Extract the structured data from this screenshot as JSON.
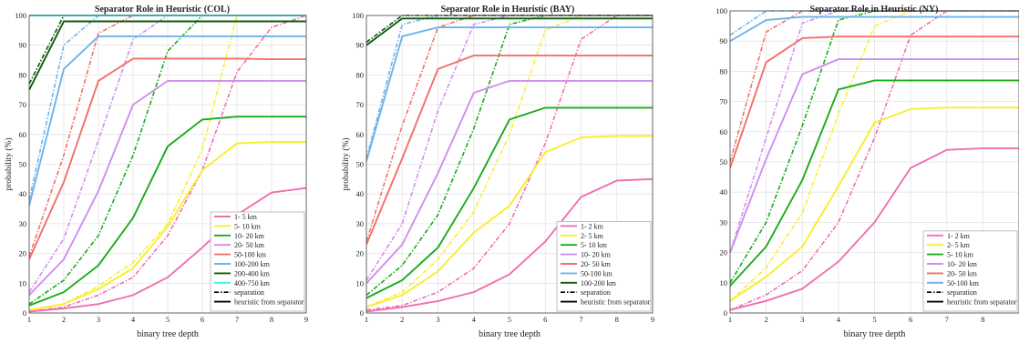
{
  "figure": {
    "ylabel": "probability (%)",
    "xlabel": "binary tree depth"
  },
  "legend_style": {
    "separation": "separation",
    "heuristic": "heuristic from separator"
  },
  "chart_data": [
    {
      "type": "line",
      "title": "Separator Role in Heuristic (COL)",
      "xlabel": "binary tree depth",
      "ylabel": "probability (%)",
      "xlim": [
        1,
        9
      ],
      "ylim": [
        0,
        100
      ],
      "xticks": [
        1,
        2,
        3,
        4,
        5,
        6,
        7,
        8,
        9
      ],
      "yticks": [
        0,
        10,
        20,
        30,
        40,
        50,
        60,
        70,
        80,
        90,
        100
      ],
      "grid": true,
      "legend_position": "bottom-right",
      "x": [
        1,
        2,
        3,
        4,
        5,
        6,
        7,
        8,
        9
      ],
      "series": [
        {
          "name": "1- 5 km",
          "color": "#f06fb0",
          "separation": [
            0.5,
            2,
            6,
            12,
            26,
            48,
            81,
            96,
            100
          ],
          "heuristic": [
            0.5,
            1.5,
            3,
            6,
            12,
            22,
            33,
            40.5,
            42
          ]
        },
        {
          "name": "5- 10 km",
          "color": "#f8ee2c",
          "separation": [
            1,
            3,
            9,
            17,
            30,
            55,
            100,
            100,
            100
          ],
          "heuristic": [
            1,
            3,
            8,
            15,
            29,
            48,
            57,
            57.5,
            57.5
          ]
        },
        {
          "name": "10- 20 km",
          "color": "#1aab1a",
          "separation": [
            3,
            11,
            26,
            53,
            88,
            100,
            100,
            100,
            100
          ],
          "heuristic": [
            2.5,
            7,
            16,
            32,
            56,
            65,
            66,
            66,
            66
          ]
        },
        {
          "name": "20- 50 km",
          "color": "#cf8ef0",
          "separation": [
            7,
            25,
            58,
            92,
            100,
            100,
            100,
            100,
            100
          ],
          "heuristic": [
            6,
            18,
            41,
            70,
            78,
            78,
            78,
            78,
            78
          ]
        },
        {
          "name": "50-100 km",
          "color": "#f2706a",
          "separation": [
            19,
            53,
            94,
            100,
            100,
            100,
            100,
            100,
            100
          ],
          "heuristic": [
            18,
            44,
            78,
            85.5,
            85.5,
            85.5,
            85.5,
            85.3,
            85.3
          ]
        },
        {
          "name": "100-200 km",
          "color": "#6fb3ea",
          "separation": [
            38,
            90,
            100,
            100,
            100,
            100,
            100,
            100,
            100
          ],
          "heuristic": [
            36,
            82,
            93,
            93,
            93,
            93,
            93,
            93,
            93
          ]
        },
        {
          "name": "200-400 km",
          "color": "#0e5b0e",
          "separation": [
            77,
            100,
            100,
            100,
            100,
            100,
            100,
            100,
            100
          ],
          "heuristic": [
            75,
            98,
            98,
            98,
            98,
            98,
            98,
            98,
            98
          ]
        },
        {
          "name": "400-750 km",
          "color": "#3ff0f2",
          "separation": [
            100,
            100,
            100,
            100,
            100,
            100,
            100,
            100,
            100
          ],
          "heuristic": [
            100,
            100,
            100,
            100,
            100,
            100,
            100,
            100,
            100
          ]
        }
      ]
    },
    {
      "type": "line",
      "title": "Separator Role in Heuristic (BAY)",
      "xlabel": "binary tree depth",
      "ylabel": "probability (%)",
      "xlim": [
        1,
        9
      ],
      "ylim": [
        0,
        100
      ],
      "xticks": [
        1,
        2,
        3,
        4,
        5,
        6,
        7,
        8,
        9
      ],
      "yticks": [
        0,
        10,
        20,
        30,
        40,
        50,
        60,
        70,
        80,
        90,
        100
      ],
      "grid": true,
      "legend_position": "bottom-right",
      "x": [
        1,
        2,
        3,
        4,
        5,
        6,
        7,
        8,
        9
      ],
      "series": [
        {
          "name": "1- 2 km",
          "color": "#f06fb0",
          "separation": [
            1,
            2.5,
            7,
            15,
            30,
            57,
            92,
            100,
            100
          ],
          "heuristic": [
            0.5,
            2,
            4,
            7,
            13,
            24,
            39,
            44.5,
            45
          ]
        },
        {
          "name": "2- 5 km",
          "color": "#f8ee2c",
          "separation": [
            2,
            7,
            18,
            34,
            60,
            95,
            100,
            100,
            100
          ],
          "heuristic": [
            2,
            6,
            14,
            27,
            36,
            54,
            59,
            59.5,
            59.5
          ]
        },
        {
          "name": "5- 10 km",
          "color": "#1aab1a",
          "separation": [
            6,
            16,
            33,
            62,
            97,
            100,
            100,
            100,
            100
          ],
          "heuristic": [
            5,
            11,
            22,
            42,
            65,
            69,
            69,
            69,
            69
          ]
        },
        {
          "name": "10- 20 km",
          "color": "#cf8ef0",
          "separation": [
            11,
            30,
            68,
            97,
            100,
            100,
            100,
            100,
            100
          ],
          "heuristic": [
            10,
            23,
            47,
            74,
            78,
            78,
            78,
            78,
            78
          ]
        },
        {
          "name": "20- 50 km",
          "color": "#f2706a",
          "separation": [
            24,
            63,
            96,
            100,
            100,
            100,
            100,
            100,
            100
          ],
          "heuristic": [
            23,
            52,
            82,
            86.5,
            86.5,
            86.5,
            86.5,
            86.5,
            86.5
          ]
        },
        {
          "name": "50-100 km",
          "color": "#6fb3ea",
          "separation": [
            52,
            97,
            100,
            100,
            100,
            100,
            100,
            100,
            100
          ],
          "heuristic": [
            51,
            93,
            96,
            96,
            96,
            96,
            96,
            96,
            96
          ]
        },
        {
          "name": "100-200 km",
          "color": "#0e5b0e",
          "separation": [
            91,
            100,
            100,
            100,
            100,
            100,
            100,
            100,
            100
          ],
          "heuristic": [
            90,
            99,
            99,
            99,
            99,
            99,
            99,
            99,
            99
          ]
        }
      ]
    },
    {
      "type": "line",
      "title": "Separator Role in Heuristic (NY)",
      "xlabel": "binary tree depth",
      "ylabel": "",
      "xlim": [
        1,
        9
      ],
      "ylim": [
        0,
        100
      ],
      "xticks": [
        1,
        2,
        3,
        4,
        5,
        6,
        7,
        8
      ],
      "yticks": [
        0,
        10,
        20,
        30,
        40,
        50,
        60,
        70,
        80,
        90,
        100
      ],
      "grid": true,
      "legend_position": "bottom-right",
      "x": [
        1,
        2,
        3,
        4,
        5,
        6,
        7,
        8,
        9
      ],
      "series": [
        {
          "name": "1- 2 km",
          "color": "#f06fb0",
          "separation": [
            1,
            6,
            14,
            30,
            58,
            92,
            100,
            100,
            100
          ],
          "heuristic": [
            1,
            4,
            8,
            17,
            30,
            48,
            54,
            54.5,
            54.5
          ]
        },
        {
          "name": "2- 5 km",
          "color": "#f8ee2c",
          "separation": [
            4,
            15,
            33,
            66,
            95,
            100,
            100,
            100,
            100
          ],
          "heuristic": [
            4,
            12,
            22,
            42,
            63,
            67.5,
            68,
            68,
            68
          ]
        },
        {
          "name": "5- 10 km",
          "color": "#1aab1a",
          "separation": [
            10,
            30,
            62,
            97,
            100,
            100,
            100,
            100,
            100
          ],
          "heuristic": [
            9,
            22,
            44,
            74,
            77,
            77,
            77,
            77,
            77
          ]
        },
        {
          "name": "10- 20 km",
          "color": "#cf8ef0",
          "separation": [
            20,
            58,
            96,
            100,
            100,
            100,
            100,
            100,
            100
          ],
          "heuristic": [
            20,
            51,
            79,
            84,
            84,
            84,
            84,
            84,
            84
          ]
        },
        {
          "name": "20- 50 km",
          "color": "#f2706a",
          "separation": [
            50,
            93,
            100,
            100,
            100,
            100,
            100,
            100,
            100
          ],
          "heuristic": [
            48,
            83,
            91,
            91.5,
            91.5,
            91.5,
            91.5,
            91.5,
            91.5
          ]
        },
        {
          "name": "50-100 km",
          "color": "#6fb3ea",
          "separation": [
            92,
            100,
            100,
            100,
            100,
            100,
            100,
            100,
            100
          ],
          "heuristic": [
            90,
            97,
            98,
            98,
            98,
            98,
            98,
            98,
            98
          ]
        }
      ]
    }
  ]
}
